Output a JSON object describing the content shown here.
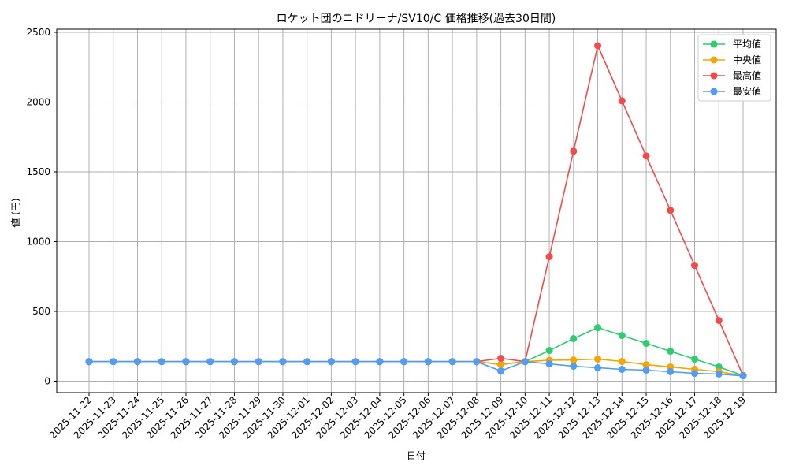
{
  "chart_data": {
    "type": "line",
    "title": "ロケット団のニドリーナ/SV10/C 価格推移(過去30日間)",
    "xlabel": "日付",
    "ylabel": "値 (円)",
    "ylim": [
      0,
      2500
    ],
    "yticks": [
      0,
      500,
      1000,
      1500,
      2000,
      2500
    ],
    "grid": true,
    "legend_position": "upper right",
    "categories": [
      "2025-11-22",
      "2025-11-23",
      "2025-11-24",
      "2025-11-25",
      "2025-11-26",
      "2025-11-27",
      "2025-11-28",
      "2025-11-29",
      "2025-11-30",
      "2025-12-01",
      "2025-12-02",
      "2025-12-03",
      "2025-12-04",
      "2025-12-05",
      "2025-12-06",
      "2025-12-07",
      "2025-12-08",
      "2025-12-09",
      "2025-12-10",
      "2025-12-11",
      "2025-12-12",
      "2025-12-13",
      "2025-12-14",
      "2025-12-15",
      "2025-12-16",
      "2025-12-17",
      "2025-12-18",
      "2025-12-19"
    ],
    "series": [
      {
        "name": "平均値",
        "color": "#2ecc71",
        "values": [
          140,
          140,
          140,
          140,
          140,
          140,
          140,
          140,
          140,
          140,
          140,
          140,
          140,
          140,
          140,
          140,
          140,
          120,
          140,
          220,
          305,
          384,
          327,
          271,
          214,
          158,
          102,
          40
        ]
      },
      {
        "name": "中央値",
        "color": "#f5a500",
        "values": [
          140,
          140,
          140,
          140,
          140,
          140,
          140,
          140,
          140,
          140,
          140,
          140,
          140,
          140,
          140,
          140,
          140,
          118,
          140,
          150,
          152,
          158,
          141,
          118,
          102,
          85,
          68,
          40
        ]
      },
      {
        "name": "最高値",
        "color": "#f24b4b",
        "values": [
          140,
          140,
          140,
          140,
          140,
          140,
          140,
          140,
          140,
          140,
          140,
          140,
          140,
          140,
          140,
          140,
          140,
          164,
          140,
          892,
          1648,
          2404,
          2009,
          1614,
          1225,
          830,
          435,
          40
        ]
      },
      {
        "name": "最安値",
        "color": "#4f9df5",
        "values": [
          140,
          140,
          140,
          140,
          140,
          140,
          140,
          140,
          140,
          140,
          140,
          140,
          140,
          140,
          140,
          140,
          140,
          73,
          140,
          124,
          107,
          96,
          85,
          79,
          68,
          56,
          51,
          38
        ]
      }
    ]
  }
}
